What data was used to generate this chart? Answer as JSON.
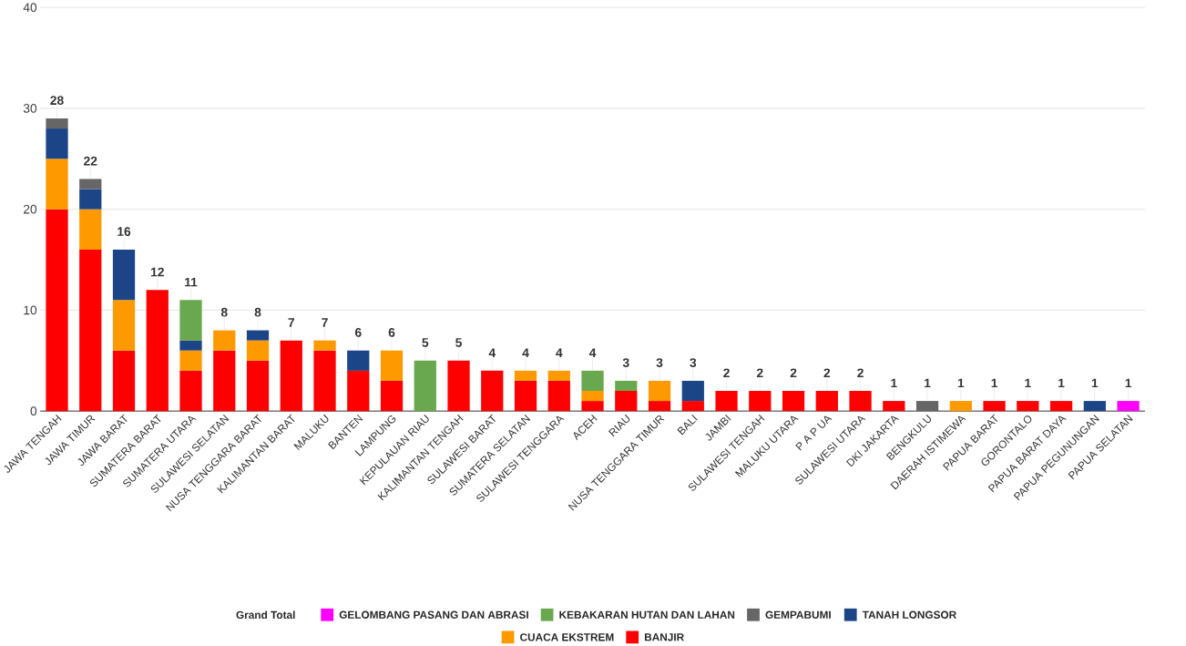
{
  "chart_data": {
    "type": "bar",
    "stacked": true,
    "legend_title": "Grand Total",
    "legend": "bottom",
    "grid": "y",
    "ylim": [
      0,
      40
    ],
    "yticks": [
      0,
      10,
      20,
      30,
      40
    ],
    "categories": [
      "JAWA TENGAH",
      "JAWA TIMUR",
      "JAWA BARAT",
      "SUMATERA BARAT",
      "SUMATERA UTARA",
      "SULAWESI SELATAN",
      "NUSA TENGGARA BARAT",
      "KALIMANTAN BARAT",
      "MALUKU",
      "BANTEN",
      "LAMPUNG",
      "KEPULAUAN RIAU",
      "KALIMANTAN TENGAH",
      "SULAWESI BARAT",
      "SUMATERA SELATAN",
      "SULAWESI TENGGARA",
      "ACEH",
      "RIAU",
      "NUSA TENGGARA TIMUR",
      "BALI",
      "JAMBI",
      "SULAWESI TENGAH",
      "MALUKU UTARA",
      "P A P UA",
      "SULAWESI UTARA",
      "DKI JAKARTA",
      "BENGKULU",
      "DAERAH ISTIMEWA",
      "PAPUA BARAT",
      "GORONTALO",
      "PAPUA BARAT DAYA",
      "PAPUA PEGUNUNGAN",
      "PAPUA SELATAN"
    ],
    "series": [
      {
        "name": "BANJIR",
        "color": "#ff0000",
        "values": [
          20,
          16,
          6,
          12,
          4,
          6,
          5,
          7,
          6,
          4,
          3,
          null,
          5,
          4,
          3,
          3,
          1,
          2,
          1,
          1,
          2,
          2,
          2,
          2,
          2,
          1,
          null,
          null,
          1,
          1,
          1,
          null,
          null
        ]
      },
      {
        "name": "CUACA EKSTREM",
        "color": "#ff9900",
        "values": [
          5,
          4,
          5,
          null,
          2,
          2,
          2,
          null,
          1,
          null,
          3,
          null,
          null,
          null,
          1,
          1,
          1,
          null,
          2,
          null,
          null,
          null,
          null,
          null,
          null,
          null,
          null,
          1,
          null,
          null,
          null,
          null,
          null
        ]
      },
      {
        "name": "TANAH LONGSOR",
        "color": "#1c4587",
        "values": [
          3,
          2,
          5,
          null,
          1,
          null,
          1,
          null,
          null,
          2,
          null,
          null,
          null,
          null,
          null,
          null,
          null,
          null,
          null,
          2,
          null,
          null,
          null,
          null,
          null,
          null,
          null,
          null,
          null,
          null,
          null,
          1,
          null
        ]
      },
      {
        "name": "GEMPABUMI",
        "color": "#666666",
        "values": [
          1,
          1,
          null,
          null,
          null,
          null,
          null,
          null,
          null,
          null,
          null,
          null,
          null,
          null,
          null,
          null,
          null,
          null,
          null,
          null,
          null,
          null,
          null,
          null,
          null,
          null,
          1,
          null,
          null,
          null,
          null,
          null,
          null
        ]
      },
      {
        "name": "KEBAKARAN HUTAN DAN LAHAN",
        "color": "#6aa84f",
        "values": [
          null,
          null,
          null,
          null,
          4,
          null,
          null,
          null,
          null,
          null,
          null,
          5,
          null,
          null,
          null,
          null,
          2,
          1,
          null,
          null,
          null,
          null,
          null,
          null,
          null,
          null,
          null,
          null,
          null,
          null,
          null,
          null,
          null
        ]
      },
      {
        "name": "GELOMBANG PASANG DAN ABRASI",
        "color": "#ff00ff",
        "values": [
          null,
          null,
          null,
          null,
          null,
          null,
          null,
          null,
          null,
          null,
          null,
          null,
          null,
          null,
          null,
          null,
          null,
          null,
          null,
          null,
          null,
          null,
          null,
          null,
          null,
          null,
          null,
          null,
          null,
          null,
          null,
          null,
          1
        ]
      }
    ],
    "totals": [
      "28",
      "22",
      "16",
      "12",
      "11",
      "8",
      "8",
      "7",
      "7",
      "6",
      "6",
      "5",
      "5",
      "4",
      "4",
      "4",
      "4",
      "3",
      "3",
      "3",
      "2",
      "2",
      "2",
      "2",
      "2",
      "1",
      "1",
      "1",
      "1",
      "1",
      "1",
      "1",
      "1"
    ]
  }
}
